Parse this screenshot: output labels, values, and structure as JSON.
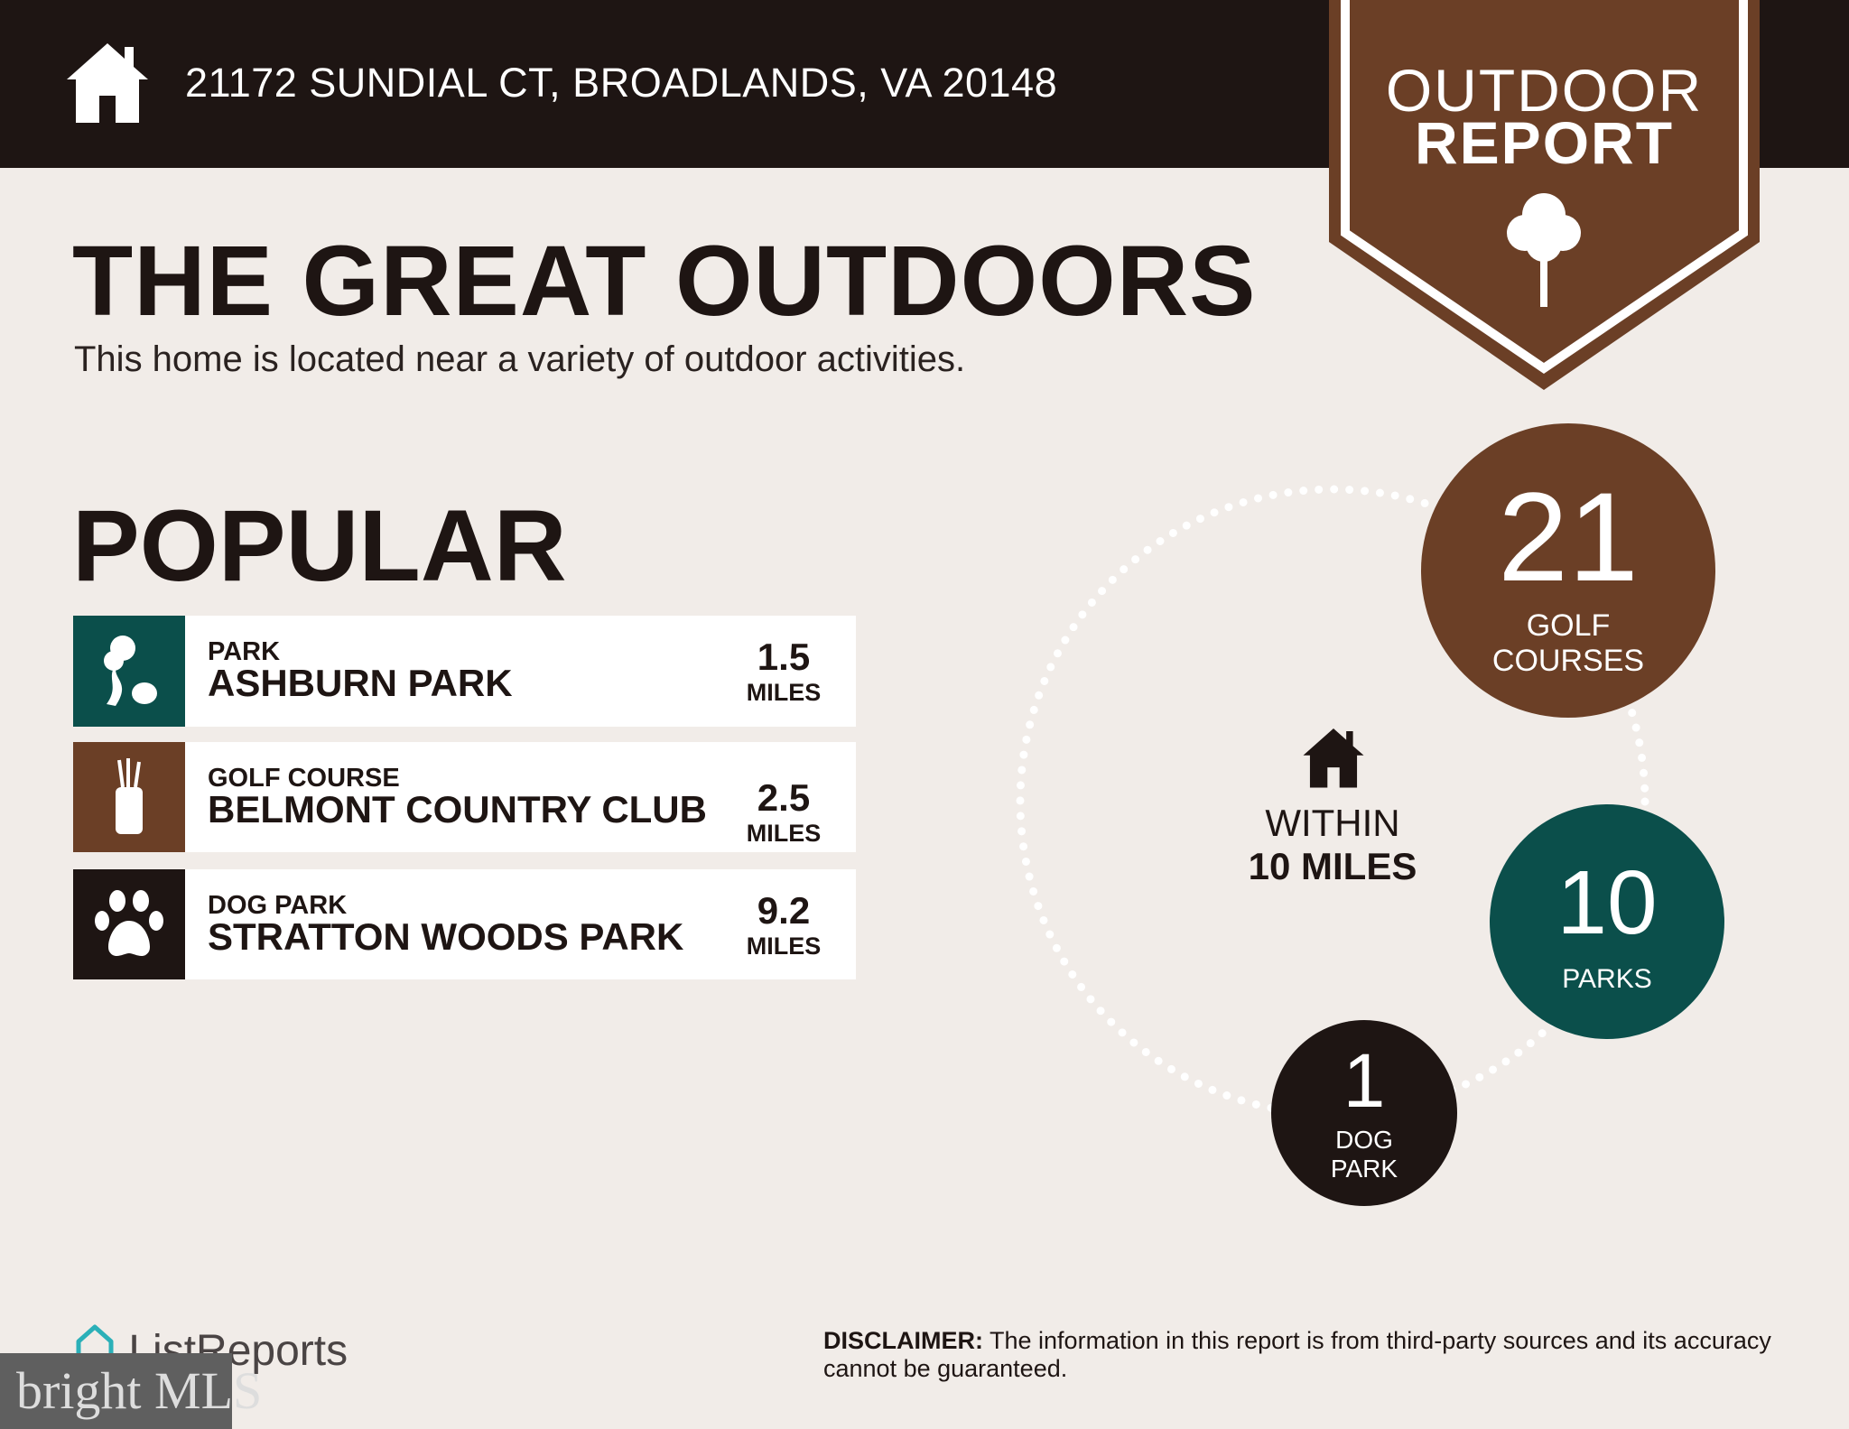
{
  "header": {
    "address": "21172 SUNDIAL CT, BROADLANDS, VA 20148",
    "icon": "home-icon"
  },
  "badge": {
    "line1": "OUTDOOR",
    "line2": "REPORT",
    "icon": "tree-icon"
  },
  "title": "THE GREAT OUTDOORS",
  "subtitle": "This home is located near a variety of outdoor activities.",
  "popular": {
    "heading": "POPULAR",
    "items": [
      {
        "category": "PARK",
        "name": "ASHBURN PARK",
        "distance": "1.5",
        "unit": "MILES",
        "icon": "park-trees-icon",
        "color": "#0b4f4b"
      },
      {
        "category": "GOLF COURSE",
        "name": "BELMONT COUNTRY CLUB",
        "distance": "2.5",
        "unit": "MILES",
        "icon": "golf-bag-icon",
        "color": "#6b3f26"
      },
      {
        "category": "DOG PARK",
        "name": "STRATTON WOODS PARK",
        "distance": "9.2",
        "unit": "MILES",
        "icon": "paw-icon",
        "color": "#1e1513"
      }
    ]
  },
  "radius": {
    "line1": "WITHIN",
    "line2": "10 MILES"
  },
  "stats": [
    {
      "count": "21",
      "label1": "GOLF",
      "label2": "COURSES",
      "color": "#6b3f26"
    },
    {
      "count": "10",
      "label1": "PARKS",
      "color": "#0b4f4b"
    },
    {
      "count": "1",
      "label1": "DOG",
      "label2": "PARK",
      "color": "#1e1513"
    }
  ],
  "disclaimer": {
    "label": "DISCLAIMER:",
    "text": " The information in this report is from third-party sources and its accuracy cannot be guaranteed."
  },
  "footer": {
    "brand": "ListReports",
    "watermark": "bright MLS"
  }
}
